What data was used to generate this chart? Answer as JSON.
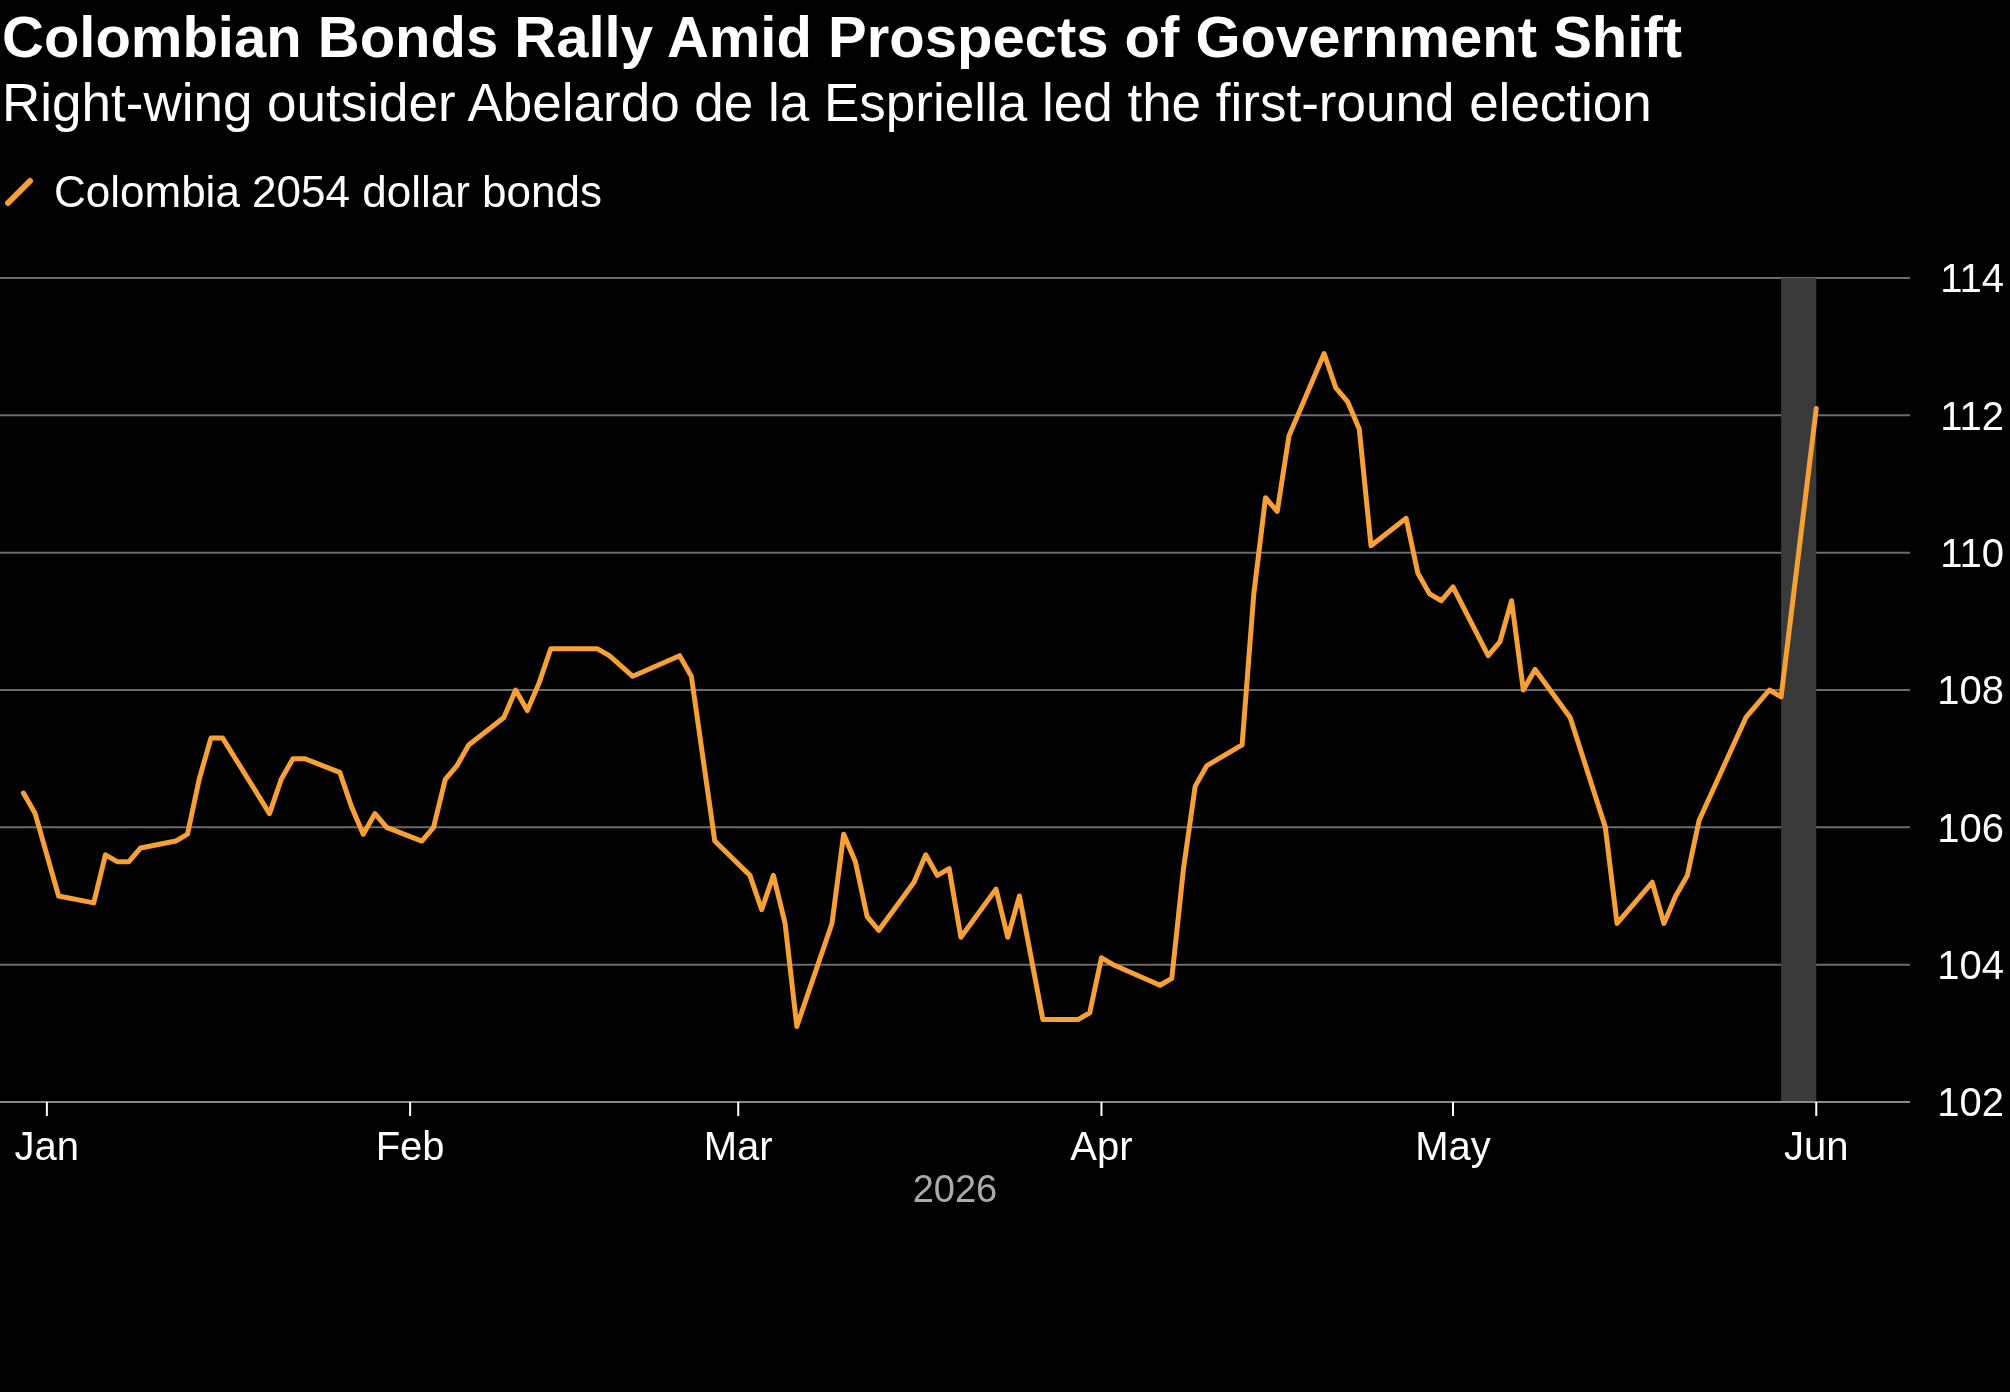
{
  "chart_data": {
    "type": "line",
    "title": "Colombian Bonds Rally Amid Prospects of Government Shift",
    "subtitle": "Right-wing outsider Abelardo de la Espriella led the first-round election",
    "xlabel": "2026",
    "x": [
      "2025-12-30",
      "2025-12-31",
      "2026-01-02",
      "2026-01-05",
      "2026-01-06",
      "2026-01-07",
      "2026-01-08",
      "2026-01-09",
      "2026-01-12",
      "2026-01-13",
      "2026-01-14",
      "2026-01-15",
      "2026-01-16",
      "2026-01-20",
      "2026-01-21",
      "2026-01-22",
      "2026-01-23",
      "2026-01-26",
      "2026-01-27",
      "2026-01-28",
      "2026-01-29",
      "2026-01-30",
      "2026-02-02",
      "2026-02-03",
      "2026-02-04",
      "2026-02-05",
      "2026-02-06",
      "2026-02-09",
      "2026-02-10",
      "2026-02-11",
      "2026-02-12",
      "2026-02-13",
      "2026-02-17",
      "2026-02-18",
      "2026-02-20",
      "2026-02-24",
      "2026-02-25",
      "2026-02-27",
      "2026-03-02",
      "2026-03-03",
      "2026-03-04",
      "2026-03-05",
      "2026-03-06",
      "2026-03-09",
      "2026-03-10",
      "2026-03-11",
      "2026-03-12",
      "2026-03-13",
      "2026-03-16",
      "2026-03-17",
      "2026-03-18",
      "2026-03-19",
      "2026-03-20",
      "2026-03-23",
      "2026-03-24",
      "2026-03-25",
      "2026-03-27",
      "2026-03-30",
      "2026-03-31",
      "2026-04-01",
      "2026-04-02",
      "2026-04-06",
      "2026-04-07",
      "2026-04-08",
      "2026-04-09",
      "2026-04-10",
      "2026-04-13",
      "2026-04-14",
      "2026-04-15",
      "2026-04-16",
      "2026-04-17",
      "2026-04-20",
      "2026-04-21",
      "2026-04-22",
      "2026-04-23",
      "2026-04-24",
      "2026-04-27",
      "2026-04-28",
      "2026-04-29",
      "2026-04-30",
      "2026-05-01",
      "2026-05-04",
      "2026-05-05",
      "2026-05-06",
      "2026-05-07",
      "2026-05-08",
      "2026-05-11",
      "2026-05-14",
      "2026-05-15",
      "2026-05-18",
      "2026-05-19",
      "2026-05-20",
      "2026-05-21",
      "2026-05-22",
      "2026-05-26",
      "2026-05-27",
      "2026-05-28",
      "2026-05-29",
      "2026-06-01"
    ],
    "series": [
      {
        "name": "Colombia 2054 dollar bonds",
        "color": "#f7a035",
        "values": [
          106.5,
          106.2,
          105.0,
          104.9,
          105.6,
          105.5,
          105.5,
          105.7,
          105.8,
          105.9,
          106.7,
          107.3,
          107.3,
          106.2,
          106.7,
          107.0,
          107.0,
          106.8,
          106.3,
          105.9,
          106.2,
          106.0,
          105.8,
          106.0,
          106.7,
          106.9,
          107.2,
          107.6,
          108.0,
          107.7,
          108.1,
          108.6,
          108.6,
          108.5,
          108.2,
          108.5,
          108.2,
          105.8,
          105.3,
          104.8,
          105.3,
          104.6,
          103.1,
          104.6,
          105.9,
          105.5,
          104.7,
          104.5,
          105.2,
          105.6,
          105.3,
          105.4,
          104.4,
          105.1,
          104.4,
          105.0,
          103.2,
          103.2,
          103.3,
          104.1,
          104.0,
          103.7,
          103.8,
          105.4,
          106.6,
          106.9,
          107.2,
          109.4,
          110.8,
          110.6,
          111.7,
          112.9,
          112.4,
          112.2,
          111.8,
          110.1,
          110.5,
          109.7,
          109.4,
          109.3,
          109.5,
          108.5,
          108.7,
          109.3,
          108.0,
          108.3,
          107.6,
          106.0,
          104.6,
          105.2,
          104.6,
          105.0,
          105.3,
          106.1,
          107.6,
          107.8,
          108.0,
          107.9,
          112.1
        ]
      }
    ],
    "xlim": [
      "2025-12-28",
      "2026-06-09"
    ],
    "xticks": [
      {
        "value": "2026-01-01",
        "label": "Jan"
      },
      {
        "value": "2026-02-01",
        "label": "Feb"
      },
      {
        "value": "2026-03-01",
        "label": "Mar"
      },
      {
        "value": "2026-04-01",
        "label": "Apr"
      },
      {
        "value": "2026-05-01",
        "label": "May"
      },
      {
        "value": "2026-06-01",
        "label": "Jun"
      }
    ],
    "ylim": [
      102,
      114
    ],
    "yticks": [
      102,
      104,
      106,
      108,
      110,
      112,
      114
    ],
    "bands": [
      {
        "axis": "x",
        "from": "2026-05-29",
        "to": "2026-06-01",
        "color": "#3a3a3a"
      }
    ],
    "grid": "y",
    "legend": "top left"
  }
}
